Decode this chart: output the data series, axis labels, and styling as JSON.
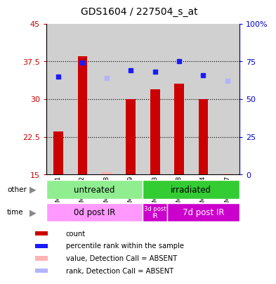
{
  "title": "GDS1604 / 227504_s_at",
  "samples": [
    "GSM93961",
    "GSM93962",
    "GSM93968",
    "GSM93969",
    "GSM93973",
    "GSM93958",
    "GSM93964",
    "GSM93967"
  ],
  "count_values": [
    23.5,
    38.5,
    null,
    30.0,
    32.0,
    33.0,
    30.0,
    null
  ],
  "count_absent": [
    null,
    null,
    15.5,
    null,
    null,
    null,
    null,
    15.2
  ],
  "rank_values": [
    65.0,
    74.0,
    null,
    69.0,
    68.0,
    75.0,
    66.0,
    null
  ],
  "rank_absent": [
    null,
    null,
    64.0,
    null,
    null,
    null,
    null,
    62.0
  ],
  "ylim_left": [
    15,
    45
  ],
  "ylim_right": [
    0,
    100
  ],
  "yticks_left": [
    15,
    22.5,
    30,
    37.5,
    45
  ],
  "yticks_right": [
    0,
    25,
    50,
    75,
    100
  ],
  "group_other": [
    {
      "label": "untreated",
      "span": [
        0,
        4
      ],
      "color": "#90ee90"
    },
    {
      "label": "irradiated",
      "span": [
        4,
        8
      ],
      "color": "#33cc33"
    }
  ],
  "group_time": [
    {
      "label": "0d post IR",
      "span": [
        0,
        4
      ],
      "color": "#ff99ff"
    },
    {
      "label": "3d post\nIR",
      "span": [
        4,
        5
      ],
      "color": "#cc00cc"
    },
    {
      "label": "7d post IR",
      "span": [
        5,
        8
      ],
      "color": "#cc00cc"
    }
  ],
  "bar_color": "#cc0000",
  "absent_bar_color": "#ffb3b3",
  "rank_color": "#1a1aff",
  "rank_absent_color": "#b3b3ff",
  "bg_color": "#d0d0d0",
  "left_axis_color": "#cc0000",
  "right_axis_color": "#0000cc",
  "legend": [
    {
      "label": "count",
      "color": "#cc0000"
    },
    {
      "label": "percentile rank within the sample",
      "color": "#1a1aff"
    },
    {
      "label": "value, Detection Call = ABSENT",
      "color": "#ffb3b3"
    },
    {
      "label": "rank, Detection Call = ABSENT",
      "color": "#b3b3ff"
    }
  ]
}
